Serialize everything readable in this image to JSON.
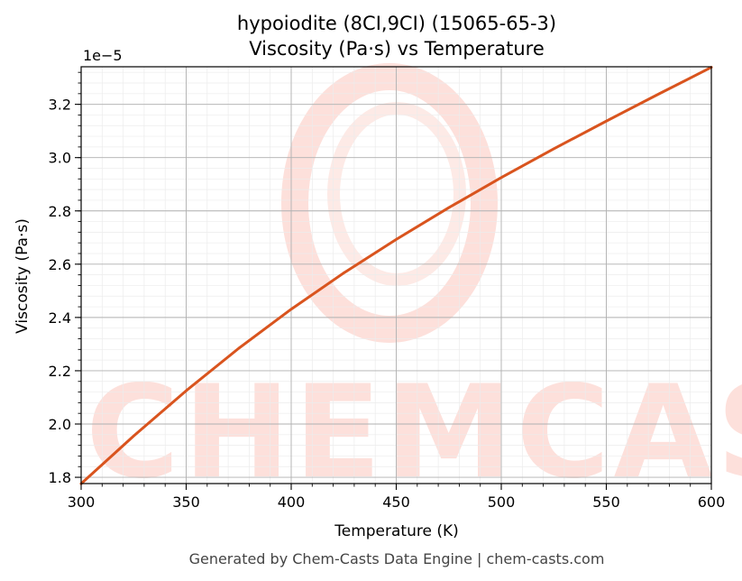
{
  "chart_data": {
    "type": "line",
    "title": "hypoiodite (8CI,9CI) (15065-65-3)",
    "subtitle": "Viscosity (Pa·s) vs Temperature",
    "xlabel": "Temperature (K)",
    "ylabel": "Viscosity (Pa·s)",
    "y_offset_label": "1e−5",
    "xlim": [
      300,
      600
    ],
    "ylim": [
      1.7765,
      3.341
    ],
    "x_ticks": [
      300,
      350,
      400,
      450,
      500,
      550,
      600
    ],
    "x_tick_labels": [
      "300",
      "350",
      "400",
      "450",
      "500",
      "550",
      "600"
    ],
    "y_ticks": [
      1.8,
      2.0,
      2.2,
      2.4,
      2.6,
      2.8,
      3.0,
      3.2
    ],
    "y_tick_labels": [
      "1.8",
      "2.0",
      "2.2",
      "2.4",
      "2.6",
      "2.8",
      "3.0",
      "3.2"
    ],
    "grid": true,
    "series": [
      {
        "color": "#d9541e",
        "x": [
          300,
          325,
          350,
          375,
          400,
          425,
          450,
          475,
          500,
          525,
          550,
          575,
          600
        ],
        "y": [
          1.776,
          1.955,
          2.125,
          2.284,
          2.431,
          2.567,
          2.693,
          2.812,
          2.925,
          3.033,
          3.137,
          3.239,
          3.339
        ]
      }
    ]
  },
  "watermark": {
    "text": "CHEMCASTS"
  },
  "footer": "Generated by Chem-Casts Data Engine | chem-casts.com"
}
